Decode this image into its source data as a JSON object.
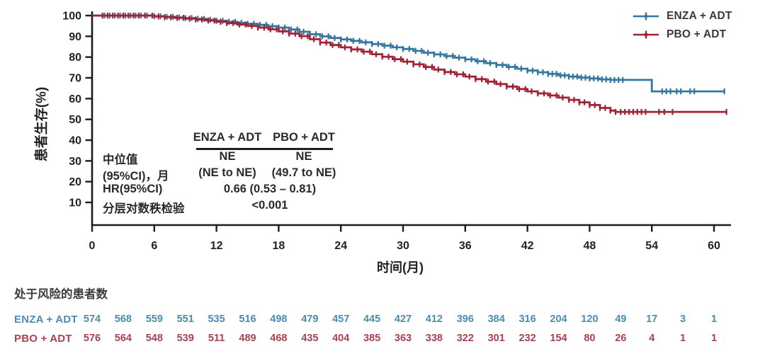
{
  "legend": {
    "items": [
      {
        "label": "ENZA + ADT",
        "color": "#33779e"
      },
      {
        "label": "PBO + ADT",
        "color": "#a12135"
      }
    ]
  },
  "stats_table": {
    "row_labels": [
      "中位值",
      "(95%CI)，月",
      "HR(95%CI)",
      "分层对数秩检验"
    ],
    "col_headers": [
      "ENZA + ADT",
      "PBO + ADT"
    ],
    "median": [
      "NE",
      "NE"
    ],
    "ci": [
      "(NE to NE)",
      "(49.7 to NE)"
    ],
    "hr": "0.66 (0.53 – 0.81)",
    "p_value": "<0.001"
  },
  "at_risk": {
    "title": "处于风险的患者数",
    "timepoints": [
      0,
      3,
      6,
      9,
      12,
      15,
      18,
      21,
      24,
      27,
      30,
      33,
      36,
      39,
      42,
      45,
      48,
      51,
      54,
      57,
      60
    ],
    "rows": [
      {
        "label": "ENZA + ADT",
        "color": "#4b8cb3",
        "counts": [
          574,
          568,
          559,
          551,
          535,
          516,
          498,
          479,
          457,
          445,
          427,
          412,
          396,
          384,
          316,
          204,
          120,
          49,
          17,
          3,
          1
        ]
      },
      {
        "label": "PBO + ADT",
        "color": "#ab4153",
        "counts": [
          576,
          564,
          548,
          539,
          511,
          489,
          468,
          435,
          404,
          385,
          363,
          338,
          322,
          301,
          232,
          154,
          80,
          26,
          4,
          1,
          1
        ]
      }
    ]
  },
  "chart_data": {
    "type": "line",
    "subtype": "kaplan-meier-step",
    "title": "",
    "xlabel": "时间(月)",
    "ylabel": "患者生存(%)",
    "xlim": [
      0,
      62
    ],
    "ylim": [
      0,
      103
    ],
    "xticks": [
      0,
      6,
      12,
      18,
      24,
      30,
      36,
      42,
      48,
      54,
      60
    ],
    "yticks": [
      10,
      20,
      30,
      40,
      50,
      60,
      70,
      80,
      90,
      100
    ],
    "grid": false,
    "legend_position": "top-right",
    "axis_color": "#1d1d1d",
    "series": [
      {
        "name": "ENZA + ADT",
        "color": "#33779e",
        "points": [
          [
            0,
            100
          ],
          [
            5,
            100
          ],
          [
            6,
            99.7
          ],
          [
            7,
            99.4
          ],
          [
            8,
            99.1
          ],
          [
            9,
            98.8
          ],
          [
            10,
            98.4
          ],
          [
            11,
            98
          ],
          [
            12,
            97.5
          ],
          [
            13,
            97
          ],
          [
            14,
            96.5
          ],
          [
            15,
            96
          ],
          [
            16,
            95.5
          ],
          [
            17,
            94.9
          ],
          [
            18,
            94.2
          ],
          [
            19,
            93.3
          ],
          [
            20,
            92.2
          ],
          [
            21,
            91
          ],
          [
            22,
            90
          ],
          [
            23,
            89.2
          ],
          [
            24,
            88.5
          ],
          [
            25,
            87.8
          ],
          [
            26,
            87.1
          ],
          [
            27,
            86.3
          ],
          [
            28,
            85.5
          ],
          [
            29,
            84.7
          ],
          [
            30,
            83.9
          ],
          [
            31,
            83
          ],
          [
            32,
            82.1
          ],
          [
            33,
            81.3
          ],
          [
            34,
            80.5
          ],
          [
            35,
            79.7
          ],
          [
            36,
            78.9
          ],
          [
            37,
            78
          ],
          [
            38,
            77.1
          ],
          [
            39,
            76.2
          ],
          [
            40,
            75.3
          ],
          [
            41,
            74.4
          ],
          [
            42,
            73.5
          ],
          [
            43,
            72.7
          ],
          [
            44,
            71.9
          ],
          [
            45,
            71.2
          ],
          [
            46,
            70.6
          ],
          [
            47,
            70.1
          ],
          [
            48,
            69.7
          ],
          [
            49,
            69.3
          ],
          [
            50,
            69
          ],
          [
            54,
            69
          ],
          [
            54,
            63.5
          ],
          [
            61,
            63.5
          ]
        ],
        "censor_marks": [
          1.2,
          1.7,
          2.2,
          2.7,
          3.2,
          3.7,
          4.2,
          4.7,
          5.3,
          6,
          6.6,
          7.2,
          7.8,
          8.4,
          9,
          9.6,
          10.2,
          10.8,
          11.4,
          12,
          12.6,
          13.2,
          13.8,
          14.4,
          15,
          15.6,
          16.2,
          16.8,
          17.4,
          18,
          18.6,
          19.2,
          19.8,
          20.4,
          21,
          21.6,
          22.2,
          22.8,
          23.4,
          24,
          24.6,
          25.2,
          25.8,
          26.4,
          27,
          27.6,
          28.2,
          28.8,
          29.4,
          30,
          30.6,
          31.2,
          31.8,
          32.4,
          33,
          33.6,
          34.2,
          34.8,
          35.4,
          36,
          36.6,
          37.2,
          37.8,
          38.4,
          39,
          39.6,
          40.2,
          40.8,
          41.4,
          42,
          42.5,
          43,
          43.5,
          44,
          44.4,
          44.8,
          45.2,
          45.6,
          46,
          46.4,
          46.8,
          47.2,
          47.6,
          48,
          48.4,
          48.8,
          49.2,
          49.6,
          50,
          50.4,
          50.8,
          51.2,
          55,
          55.4,
          55.8,
          56.4,
          56.8,
          57.7,
          58.1,
          61
        ]
      },
      {
        "name": "PBO + ADT",
        "color": "#a12135",
        "points": [
          [
            0,
            100
          ],
          [
            5,
            100
          ],
          [
            6,
            99.6
          ],
          [
            7,
            99.2
          ],
          [
            8,
            98.9
          ],
          [
            9,
            98.5
          ],
          [
            10,
            98.1
          ],
          [
            11,
            97.6
          ],
          [
            12,
            97
          ],
          [
            13,
            96.4
          ],
          [
            14,
            95.7
          ],
          [
            15,
            95
          ],
          [
            16,
            94.2
          ],
          [
            17,
            93.4
          ],
          [
            18,
            92.4
          ],
          [
            19,
            91.3
          ],
          [
            20,
            90.1
          ],
          [
            21,
            88.6
          ],
          [
            22,
            87
          ],
          [
            23,
            85.8
          ],
          [
            24,
            84.7
          ],
          [
            25,
            83.7
          ],
          [
            26,
            82.6
          ],
          [
            27,
            81.4
          ],
          [
            28,
            80.2
          ],
          [
            29,
            79
          ],
          [
            30,
            77.8
          ],
          [
            31,
            76.5
          ],
          [
            32,
            75.2
          ],
          [
            33,
            74
          ],
          [
            34,
            72.8
          ],
          [
            35,
            71.7
          ],
          [
            36,
            70.6
          ],
          [
            37,
            69.4
          ],
          [
            38,
            68.2
          ],
          [
            39,
            67
          ],
          [
            40,
            65.8
          ],
          [
            41,
            64.6
          ],
          [
            42,
            63.5
          ],
          [
            43,
            62.5
          ],
          [
            44,
            61.5
          ],
          [
            45,
            60.5
          ],
          [
            46,
            59.4
          ],
          [
            47,
            58.2
          ],
          [
            48,
            56.9
          ],
          [
            49,
            55.5
          ],
          [
            50,
            54.2
          ],
          [
            50.5,
            53.6
          ],
          [
            61.2,
            53.6
          ]
        ],
        "censor_marks": [
          1,
          1.5,
          2,
          2.5,
          3,
          3.5,
          4,
          4.5,
          5.1,
          5.8,
          6.4,
          7,
          7.6,
          8.2,
          8.8,
          9.4,
          10,
          10.6,
          11.2,
          11.8,
          12.4,
          13,
          13.6,
          14.2,
          14.8,
          15.4,
          16,
          16.6,
          17.2,
          17.8,
          18.4,
          19,
          19.6,
          20.2,
          20.8,
          21.4,
          22,
          22.6,
          23.2,
          23.8,
          24.4,
          25,
          25.6,
          26.2,
          26.8,
          27.4,
          28,
          28.6,
          29.2,
          29.8,
          30.4,
          31,
          31.6,
          32.2,
          32.8,
          33.4,
          34,
          34.6,
          35.2,
          35.8,
          36.4,
          37,
          37.6,
          38.2,
          38.8,
          39.4,
          40,
          40.6,
          41.2,
          41.8,
          42.4,
          43,
          43.6,
          44.2,
          44.8,
          45.4,
          46,
          46.5,
          47,
          47.5,
          48,
          48.5,
          49,
          49.5,
          50,
          50.5,
          51,
          51.4,
          51.8,
          52.2,
          52.6,
          53,
          53.4,
          54.7,
          55.2,
          56,
          61.2
        ]
      }
    ]
  }
}
